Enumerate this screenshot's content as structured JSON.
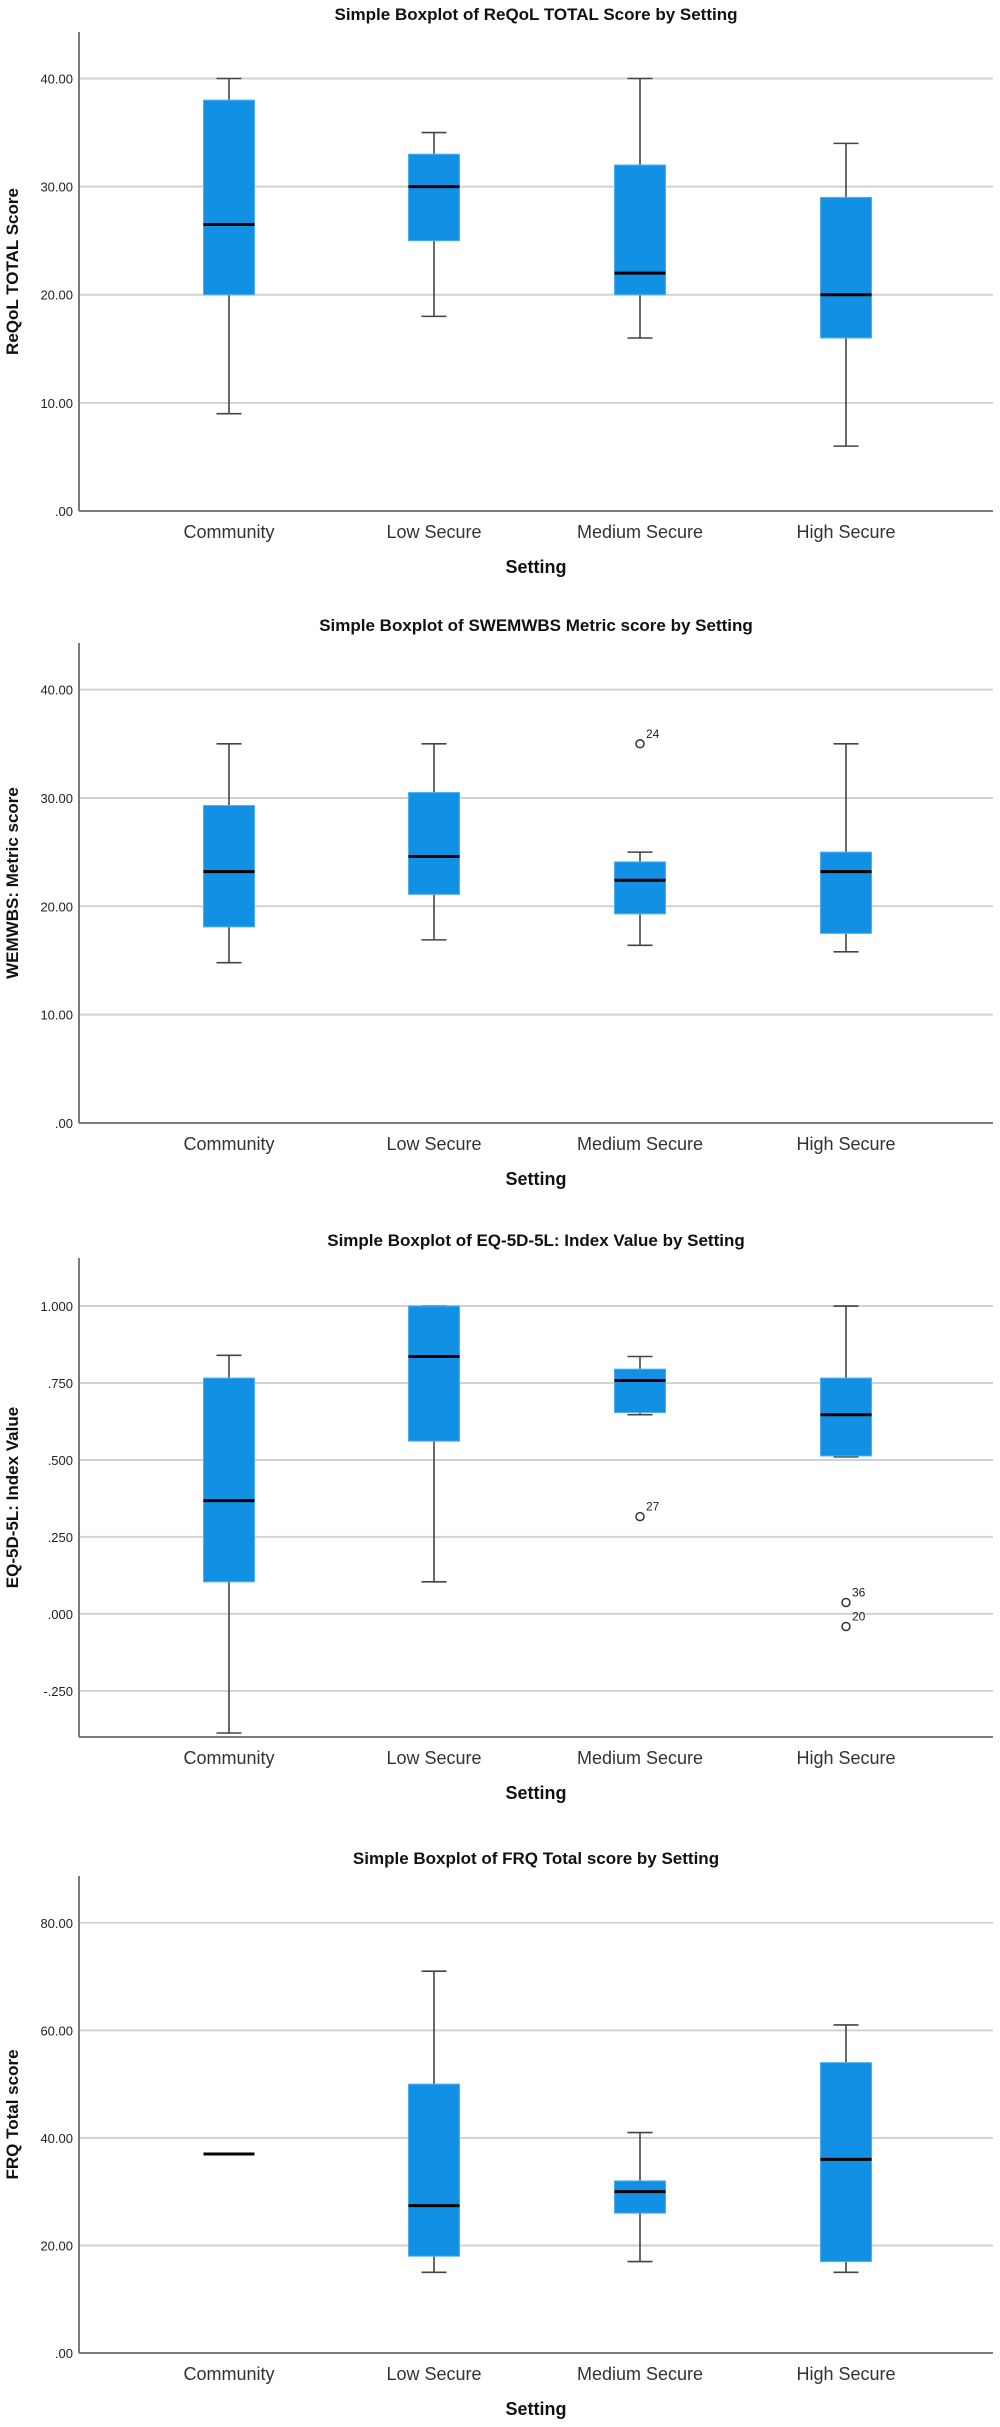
{
  "chart_data": [
    {
      "type": "box",
      "title": "Simple Boxplot of ReQoL TOTAL Score by Setting",
      "xlabel": "Setting",
      "ylabel": "ReQoL TOTAL Score",
      "categories": [
        "Community",
        "Low Secure",
        "Medium Secure",
        "High Secure"
      ],
      "yticks": [
        0,
        10,
        20,
        30,
        40
      ],
      "ytick_labels": [
        ".00",
        "10.00",
        "20.00",
        "30.00",
        "40.00"
      ],
      "ylim": [
        0,
        44.3
      ],
      "grid": true,
      "boxes": [
        {
          "min": 9,
          "q1": 20,
          "median": 26.5,
          "q3": 38,
          "max": 40,
          "outliers": []
        },
        {
          "min": 18,
          "q1": 25,
          "median": 30,
          "q3": 33,
          "max": 35,
          "outliers": []
        },
        {
          "min": 16,
          "q1": 20,
          "median": 22,
          "q3": 32,
          "max": 40,
          "outliers": []
        },
        {
          "min": 6,
          "q1": 16,
          "median": 20,
          "q3": 29,
          "max": 34,
          "outliers": []
        }
      ]
    },
    {
      "type": "box",
      "title": "Simple Boxplot of SWEMWBS Metric score by Setting",
      "xlabel": "Setting",
      "ylabel": "WEMWBS: Metric score",
      "categories": [
        "Community",
        "Low Secure",
        "Medium Secure",
        "High Secure"
      ],
      "yticks": [
        0,
        10,
        20,
        30,
        40
      ],
      "ytick_labels": [
        ".00",
        "10.00",
        "20.00",
        "30.00",
        "40.00"
      ],
      "ylim": [
        0,
        44.3
      ],
      "grid": true,
      "boxes": [
        {
          "min": 14.8,
          "q1": 18.1,
          "median": 23.2,
          "q3": 29.3,
          "max": 35,
          "outliers": []
        },
        {
          "min": 16.9,
          "q1": 21.1,
          "median": 24.6,
          "q3": 30.5,
          "max": 35,
          "outliers": []
        },
        {
          "min": 16.4,
          "q1": 19.3,
          "median": 22.4,
          "q3": 24.1,
          "max": 25,
          "outliers": [
            {
              "value": 35,
              "label": "24"
            }
          ]
        },
        {
          "min": 15.8,
          "q1": 17.5,
          "median": 23.2,
          "q3": 25,
          "max": 35,
          "outliers": []
        }
      ]
    },
    {
      "type": "box",
      "title": "Simple Boxplot of EQ-5D-5L: Index Value by Setting",
      "xlabel": "Setting",
      "ylabel": "EQ-5D-5L: Index Value",
      "categories": [
        "Community",
        "Low Secure",
        "Medium Secure",
        "High Secure"
      ],
      "yticks": [
        -0.25,
        0,
        0.25,
        0.5,
        0.75,
        1.0
      ],
      "ytick_labels": [
        "-.250",
        ".000",
        ".250",
        ".500",
        ".750",
        "1.000"
      ],
      "ylim": [
        -0.4,
        1.156
      ],
      "grid": true,
      "boxes": [
        {
          "min": -0.387,
          "q1": 0.104,
          "median": 0.368,
          "q3": 0.766,
          "max": 0.84,
          "outliers": []
        },
        {
          "min": 0.104,
          "q1": 0.561,
          "median": 0.836,
          "q3": 1.0,
          "max": 1.0,
          "outliers": []
        },
        {
          "min": 0.647,
          "q1": 0.654,
          "median": 0.758,
          "q3": 0.795,
          "max": 0.836,
          "outliers": [
            {
              "value": 0.316,
              "label": "27"
            }
          ]
        },
        {
          "min": 0.51,
          "q1": 0.513,
          "median": 0.647,
          "q3": 0.766,
          "max": 1.0,
          "outliers": [
            {
              "value": 0.037,
              "label": "36"
            },
            {
              "value": -0.041,
              "label": "20"
            }
          ]
        }
      ]
    },
    {
      "type": "box",
      "title": "Simple Boxplot of FRQ Total score by Setting",
      "xlabel": "Setting",
      "ylabel": "FRQ Total score",
      "categories": [
        "Community",
        "Low Secure",
        "Medium Secure",
        "High Secure"
      ],
      "yticks": [
        0,
        20,
        40,
        60,
        80
      ],
      "ytick_labels": [
        ".00",
        "20.00",
        "40.00",
        "60.00",
        "80.00"
      ],
      "ylim": [
        0,
        88.7
      ],
      "grid": true,
      "boxes": [
        {
          "min": 37,
          "q1": 37,
          "median": 37,
          "q3": 37,
          "max": 37,
          "outliers": []
        },
        {
          "min": 15,
          "q1": 18,
          "median": 27.4,
          "q3": 50,
          "max": 71,
          "outliers": []
        },
        {
          "min": 17,
          "q1": 26,
          "median": 30,
          "q3": 32,
          "max": 41,
          "outliers": []
        },
        {
          "min": 15,
          "q1": 17,
          "median": 36,
          "q3": 54,
          "max": 61,
          "outliers": []
        }
      ]
    }
  ]
}
